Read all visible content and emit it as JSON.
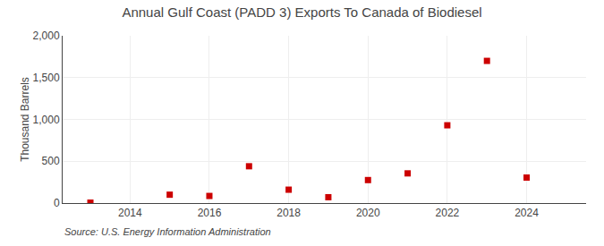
{
  "chart_data": {
    "type": "scatter",
    "title": "Annual Gulf Coast (PADD 3) Exports To Canada of Biodiesel",
    "ylabel": "Thousand Barrels",
    "annotations": [
      "Source: U.S. Energy Information Administration"
    ],
    "x": [
      2013,
      2015,
      2016,
      2017,
      2018,
      2019,
      2020,
      2021,
      2022,
      2023,
      2024
    ],
    "values": [
      5,
      100,
      85,
      440,
      160,
      70,
      275,
      355,
      930,
      1700,
      305
    ],
    "color": "#cc0000",
    "marker": "square",
    "xlim": [
      2012.3,
      2025.5
    ],
    "ylim": [
      0,
      2000
    ],
    "xticks": [
      2014,
      2016,
      2018,
      2020,
      2022,
      2024
    ],
    "yticks": [
      0,
      500,
      {
        "value": 1000,
        "label": "1,000"
      },
      {
        "value": 1500,
        "label": "1,500"
      },
      {
        "value": 2000,
        "label": "2,000"
      }
    ],
    "grid": true
  }
}
